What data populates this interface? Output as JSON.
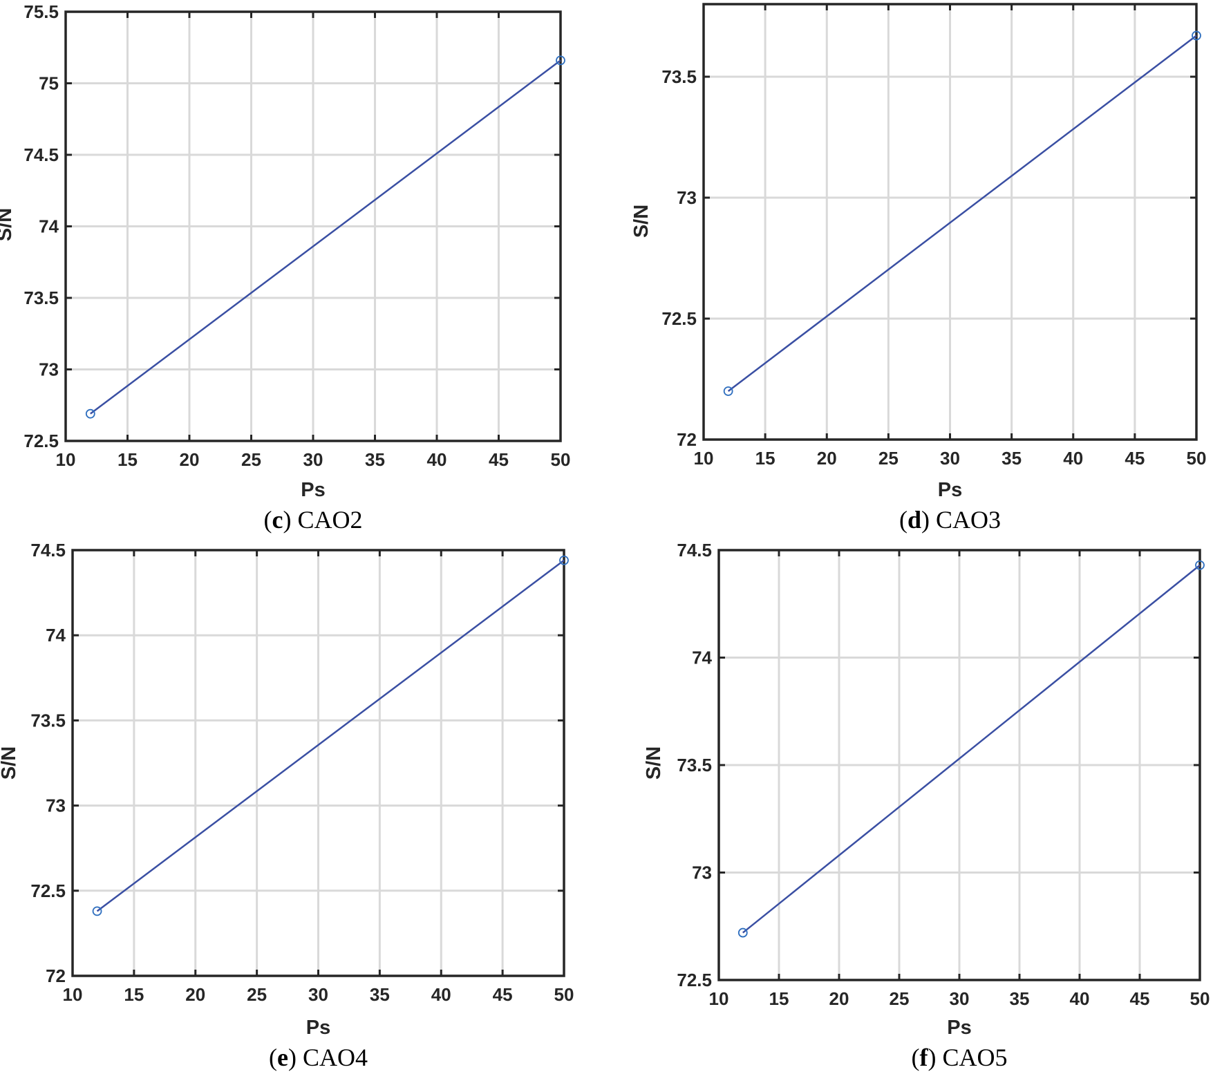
{
  "chart_data": [
    {
      "type": "line",
      "caption_letter": "c",
      "caption_name": "CAO2",
      "xlabel": "Ps",
      "ylabel": "S/N",
      "xlim": [
        10,
        50
      ],
      "ylim": [
        72.5,
        75.5
      ],
      "xticks": [
        "10",
        "15",
        "20",
        "25",
        "30",
        "35",
        "40",
        "45",
        "50"
      ],
      "yticks": [
        "72.5",
        "73",
        "73.5",
        "74",
        "74.5",
        "75",
        "75.5"
      ],
      "grid": true,
      "series": [
        {
          "name": "S/N",
          "x": [
            12,
            50
          ],
          "y": [
            72.69,
            75.16
          ]
        }
      ]
    },
    {
      "type": "line",
      "caption_letter": "d",
      "caption_name": "CAO3",
      "xlabel": "Ps",
      "ylabel": "S/N",
      "xlim": [
        10,
        50
      ],
      "ylim": [
        72,
        73.8
      ],
      "xticks": [
        "10",
        "15",
        "20",
        "25",
        "30",
        "35",
        "40",
        "45",
        "50"
      ],
      "yticks": [
        "72",
        "72.5",
        "73",
        "73.5"
      ],
      "grid": true,
      "series": [
        {
          "name": "S/N",
          "x": [
            12,
            50
          ],
          "y": [
            72.2,
            73.67
          ]
        }
      ]
    },
    {
      "type": "line",
      "caption_letter": "e",
      "caption_name": "CAO4",
      "xlabel": "Ps",
      "ylabel": "S/N",
      "xlim": [
        10,
        50
      ],
      "ylim": [
        72,
        74.5
      ],
      "xticks": [
        "10",
        "15",
        "20",
        "25",
        "30",
        "35",
        "40",
        "45",
        "50"
      ],
      "yticks": [
        "72",
        "72.5",
        "73",
        "73.5",
        "74",
        "74.5"
      ],
      "grid": true,
      "series": [
        {
          "name": "S/N",
          "x": [
            12,
            50
          ],
          "y": [
            72.38,
            74.44
          ]
        }
      ]
    },
    {
      "type": "line",
      "caption_letter": "f",
      "caption_name": "CAO5",
      "xlabel": "Ps",
      "ylabel": "S/N",
      "xlim": [
        10,
        50
      ],
      "ylim": [
        72.5,
        74.5
      ],
      "xticks": [
        "10",
        "15",
        "20",
        "25",
        "30",
        "35",
        "40",
        "45",
        "50"
      ],
      "yticks": [
        "72.5",
        "73",
        "73.5",
        "74",
        "74.5"
      ],
      "grid": true,
      "series": [
        {
          "name": "S/N",
          "x": [
            12,
            50
          ],
          "y": [
            72.72,
            74.43
          ]
        }
      ]
    }
  ],
  "colors": {
    "line": "#3a4fa3",
    "marker": "#2f6fbf",
    "grid": "#d9d9d9",
    "axis": "#262626",
    "caption": "#000000"
  }
}
